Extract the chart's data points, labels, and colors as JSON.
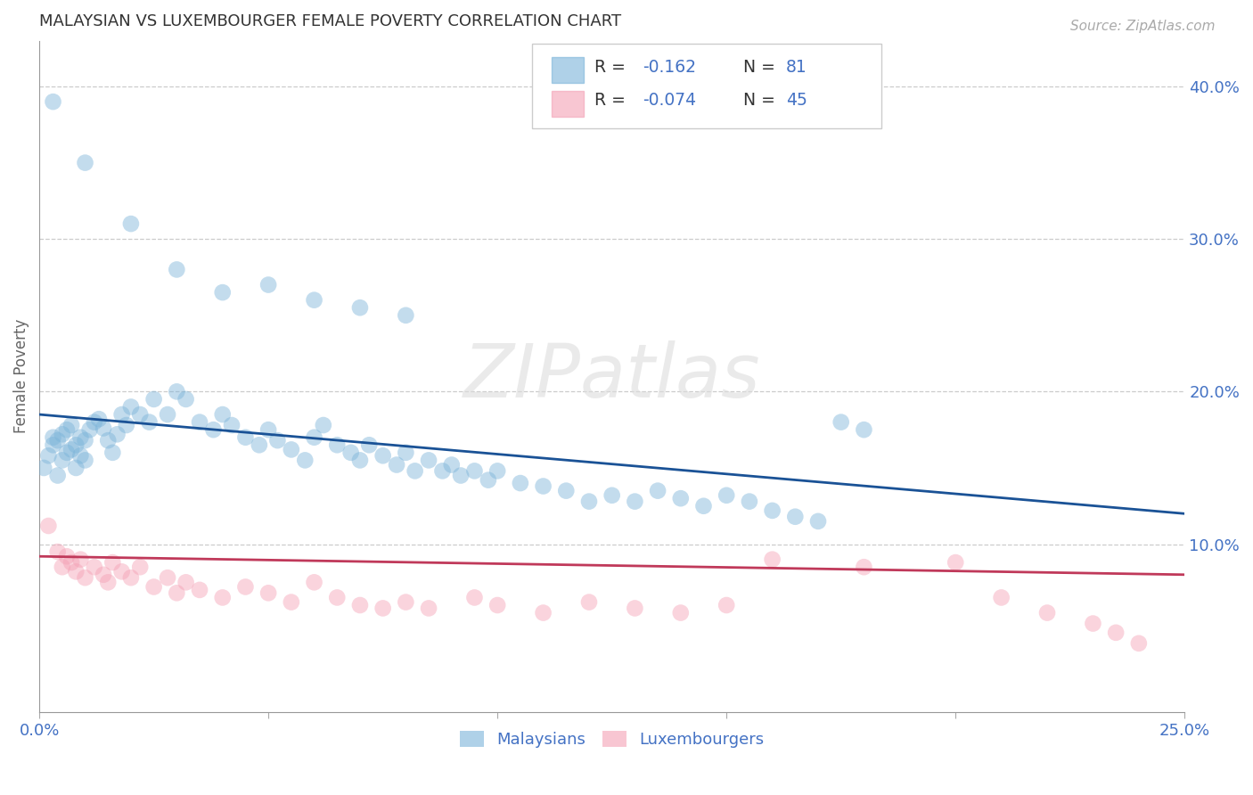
{
  "title": "MALAYSIAN VS LUXEMBOURGER FEMALE POVERTY CORRELATION CHART",
  "source": "Source: ZipAtlas.com",
  "ylabel": "Female Poverty",
  "xlim_min": 0.0,
  "xlim_max": 0.25,
  "ylim_min": -0.01,
  "ylim_max": 0.43,
  "ytick_vals": [
    0.1,
    0.2,
    0.3,
    0.4
  ],
  "ytick_labels": [
    "10.0%",
    "20.0%",
    "30.0%",
    "40.0%"
  ],
  "xtick_vals": [
    0.0,
    0.05,
    0.1,
    0.15,
    0.2,
    0.25
  ],
  "xtick_labels": [
    "0.0%",
    "",
    "",
    "",
    "",
    "25.0%"
  ],
  "blue_color": "#7ab3d9",
  "pink_color": "#f4a0b5",
  "blue_line_color": "#1a5296",
  "pink_line_color": "#c0395a",
  "blue_r": "-0.162",
  "blue_n": "81",
  "pink_r": "-0.074",
  "pink_n": "45",
  "blue_line_y0": 0.185,
  "blue_line_y1": 0.12,
  "pink_line_y0": 0.092,
  "pink_line_y1": 0.08,
  "bg_color": "#ffffff",
  "grid_color": "#cccccc",
  "axis_color": "#4472c4",
  "label_color": "#666666",
  "title_color": "#333333",
  "watermark": "ZIPatlas",
  "legend1_label": "Malaysians",
  "legend2_label": "Luxembourgers",
  "val_color": "#4472c4",
  "label_text_color": "#333333"
}
